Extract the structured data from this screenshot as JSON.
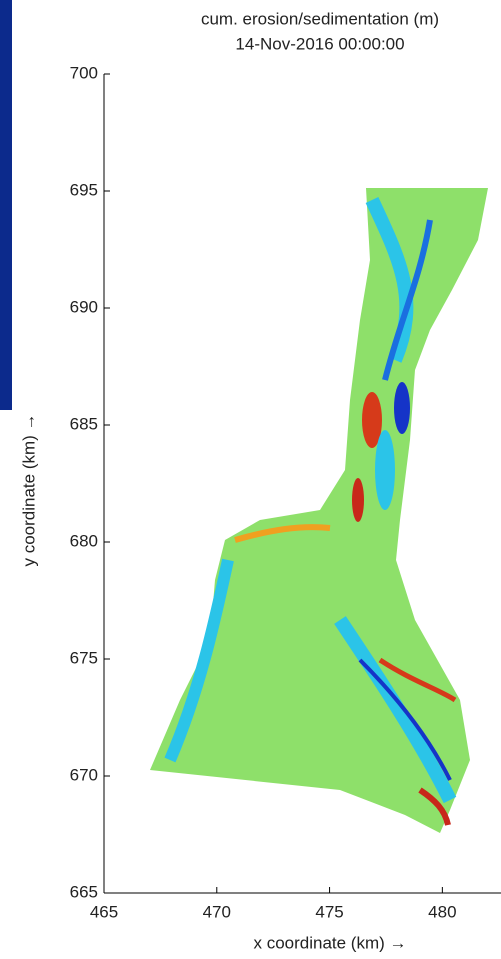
{
  "chart_data": {
    "type": "map",
    "title": "cum. erosion/sedimentation (m)",
    "subtitle": "14-Nov-2016 00:00:00",
    "x_label": "x coordinate (km) →",
    "y_label": "y coordinate (km) →",
    "xlim": [
      465,
      482.6
    ],
    "xticks": [
      465,
      470,
      475,
      480
    ],
    "ylim": [
      665,
      700
    ],
    "yticks": [
      665,
      670,
      675,
      680,
      685,
      690,
      695,
      700
    ]
  }
}
